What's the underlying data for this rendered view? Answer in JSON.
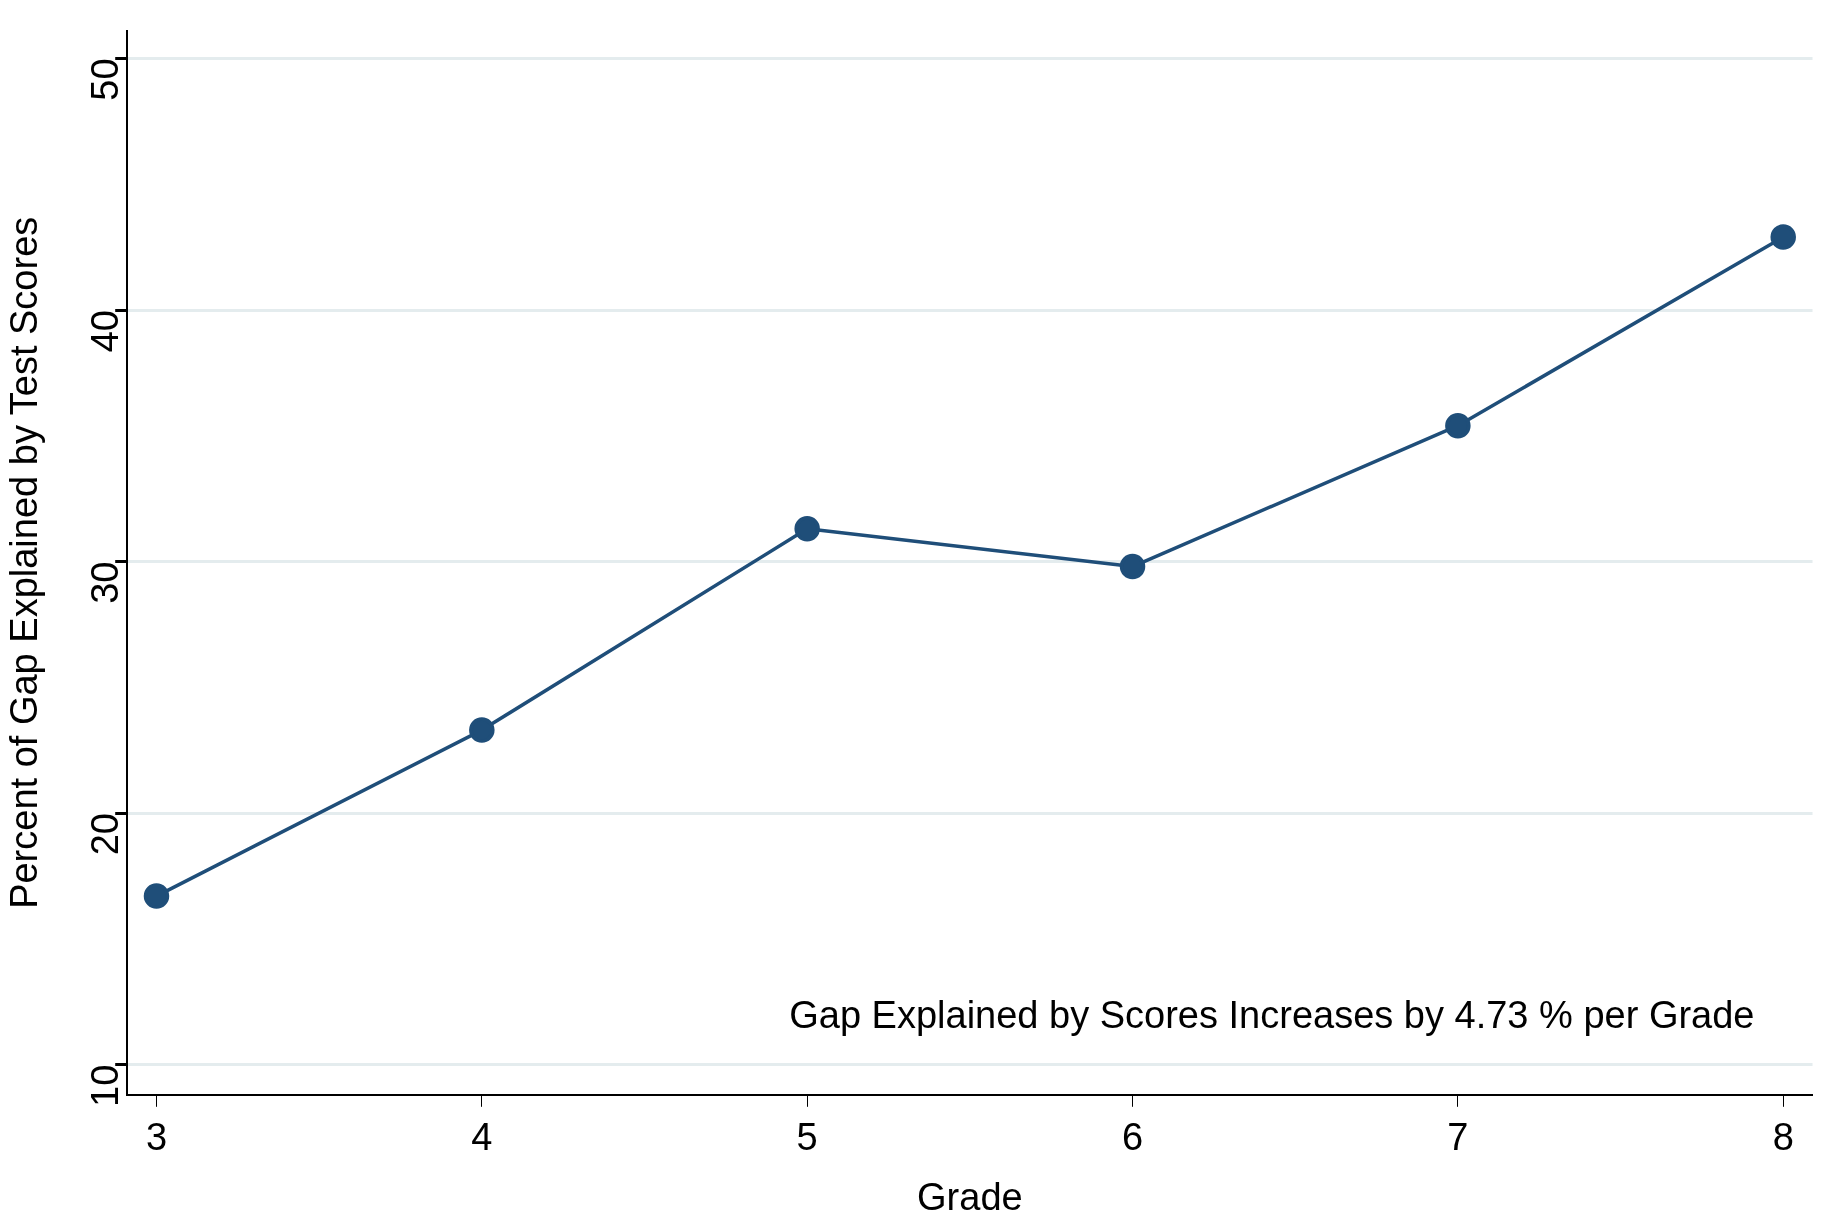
{
  "chart_data": {
    "type": "line",
    "xlabel": "Grade",
    "ylabel": "Percent of Gap Explained by Test Scores",
    "x": [
      3,
      4,
      5,
      6,
      7,
      8
    ],
    "series": [
      {
        "color": "#1f4e79",
        "values": [
          16.7,
          23.3,
          31.3,
          29.8,
          35.4,
          42.9
        ]
      }
    ],
    "xlim": [
      2.91,
      8.09
    ],
    "xticks": [
      3,
      4,
      5,
      6,
      7,
      8
    ],
    "ylim": [
      8.8,
      51.1
    ],
    "yticks": [
      10,
      20,
      30,
      40,
      50
    ],
    "grid": "y",
    "marker": "circle",
    "line_style": "solid",
    "legend": false,
    "annotations": [
      "Gap Explained by Scores Increases by 4.73 % per Grade"
    ]
  }
}
